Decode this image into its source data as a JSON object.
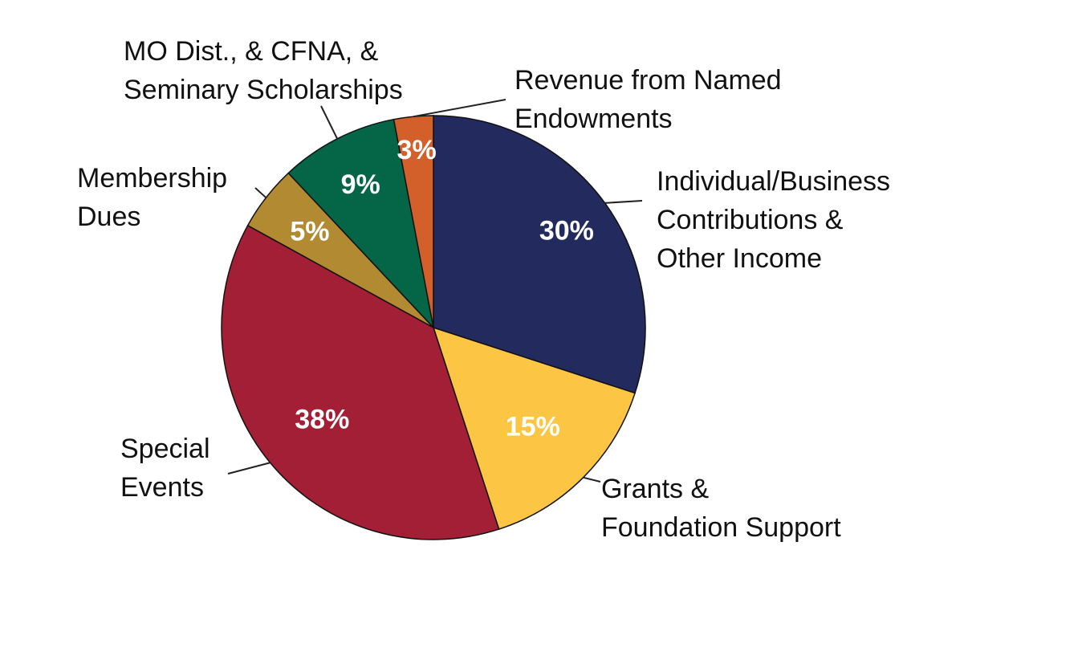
{
  "chart_data": {
    "type": "pie",
    "title": "",
    "slices": [
      {
        "label_lines": [
          "Individual/Business",
          "Contributions &",
          "Other Income"
        ],
        "value": 30,
        "value_label": "30%",
        "color": "#222a5e"
      },
      {
        "label_lines": [
          "Grants &",
          "Foundation Support"
        ],
        "value": 15,
        "value_label": "15%",
        "color": "#fdc544"
      },
      {
        "label_lines": [
          "Special",
          "Events"
        ],
        "value": 38,
        "value_label": "38%",
        "color": "#a31f35"
      },
      {
        "label_lines": [
          "Membership",
          "Dues"
        ],
        "value": 5,
        "value_label": "5%",
        "color": "#b28a32"
      },
      {
        "label_lines": [
          "MO Dist., & CFNA, &",
          "Seminary Scholarships"
        ],
        "value": 9,
        "value_label": "9%",
        "color": "#056647"
      },
      {
        "label_lines": [
          "Revenue from Named",
          "Endowments"
        ],
        "value": 3,
        "value_label": "3%",
        "color": "#d35f2b"
      }
    ]
  }
}
